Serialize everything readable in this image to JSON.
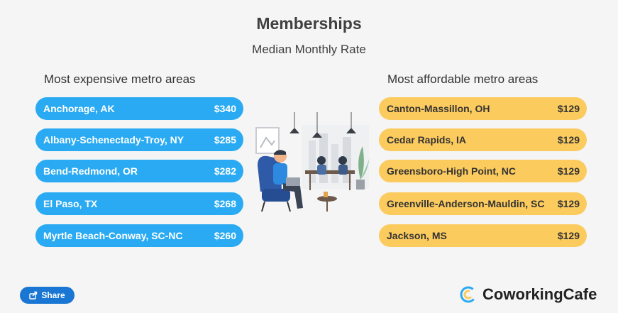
{
  "title": "Memberships",
  "subtitle": "Median Monthly Rate",
  "left_heading": "Most expensive metro areas",
  "right_heading": "Most affordable metro areas",
  "share_label": "Share",
  "brand_name": "CoworkingCafe",
  "colors": {
    "expensive": "#29aaf2",
    "affordable": "#fccb5e",
    "share_button": "#1976d2"
  },
  "icons": [
    "share-icon",
    "coworkingcafe-logo-icon",
    "coworking-illustration"
  ],
  "chart_data": {
    "type": "table",
    "title": "Memberships",
    "subtitle": "Median Monthly Rate",
    "groups": [
      {
        "name": "Most expensive metro areas",
        "rows": [
          {
            "metro": "Anchorage, AK",
            "rate": "$340",
            "value": 340
          },
          {
            "metro": "Albany-Schenectady-Troy, NY",
            "rate": "$285",
            "value": 285
          },
          {
            "metro": "Bend-Redmond, OR",
            "rate": "$282",
            "value": 282
          },
          {
            "metro": "El Paso, TX",
            "rate": "$268",
            "value": 268
          },
          {
            "metro": "Myrtle Beach-Conway, SC-NC",
            "rate": "$260",
            "value": 260
          }
        ]
      },
      {
        "name": "Most affordable metro areas",
        "rows": [
          {
            "metro": "Canton-Massillon, OH",
            "rate": "$129",
            "value": 129
          },
          {
            "metro": "Cedar Rapids, IA",
            "rate": "$129",
            "value": 129
          },
          {
            "metro": "Greensboro-High Point, NC",
            "rate": "$129",
            "value": 129
          },
          {
            "metro": "Greenville-Anderson-Mauldin, SC",
            "rate": "$129",
            "value": 129
          },
          {
            "metro": "Jackson, MS",
            "rate": "$129",
            "value": 129
          }
        ]
      }
    ]
  }
}
